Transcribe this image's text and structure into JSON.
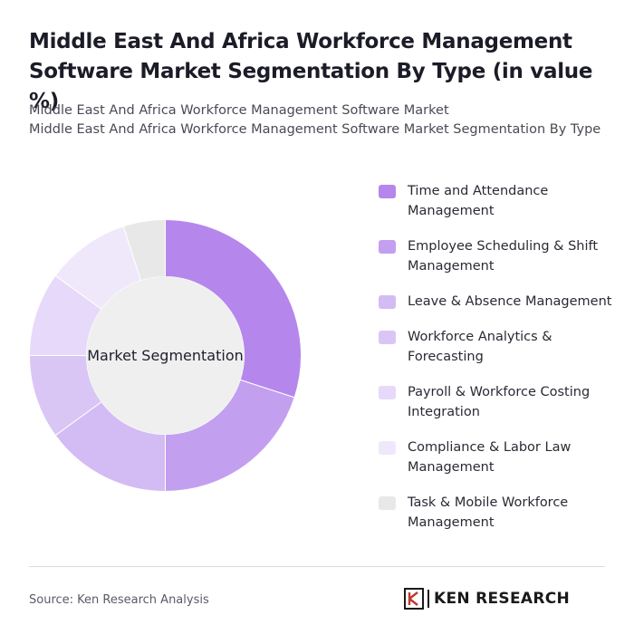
{
  "title": "Middle East And Africa Workforce Management Software Market Segmentation By Type (in value %)",
  "subtitle": {
    "line1": "Middle East And Africa Workforce Management Software Market",
    "line2": "Middle East And Africa Workforce Management Software Market Segmentation By Type"
  },
  "source": "Source: Ken Research Analysis",
  "logo": {
    "text": "KEN RESEARCH",
    "mark": "K"
  },
  "chart_data": {
    "type": "pie",
    "center_label": "Market Segmentation",
    "categories": [
      "Time and Attendance Management",
      "Employee Scheduling & Shift Management",
      "Leave & Absence Management",
      "Workforce Analytics & Forecasting",
      "Payroll & Workforce Costing Integration",
      "Compliance & Labor Law Management",
      "Task & Mobile Workforce Management"
    ],
    "values": [
      30,
      20,
      15,
      10,
      10,
      10,
      5
    ],
    "colors": [
      "#b587ec",
      "#c39ff0",
      "#d3bbf4",
      "#dac6f5",
      "#e6d9f9",
      "#efe8fb",
      "#e8e8e8"
    ],
    "legend_position": "right"
  }
}
